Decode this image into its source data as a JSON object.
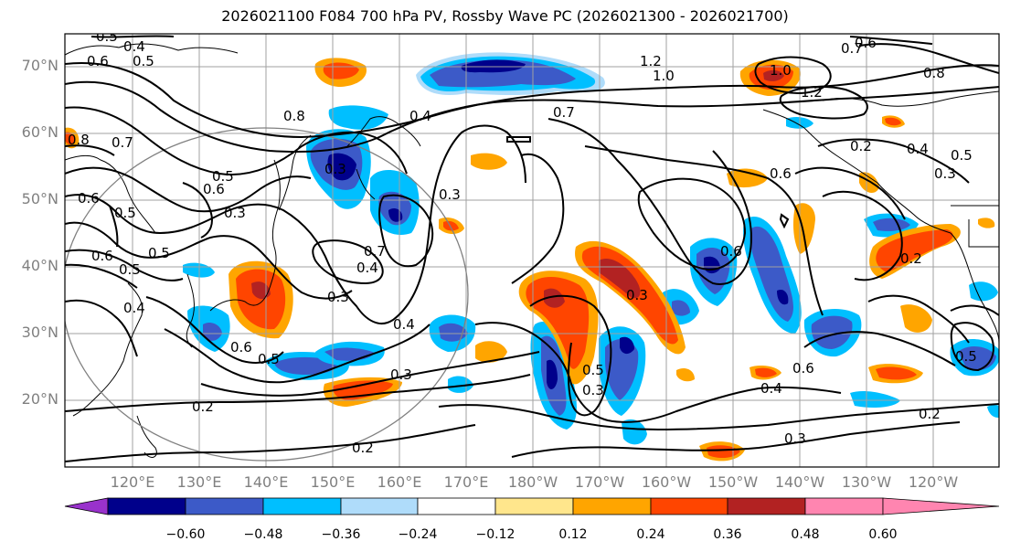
{
  "title": "2026021100 F084 700 hPa PV, Rossby Wave PC (2026021300 - 2026021700)",
  "lat_labels": [
    "70°N",
    "60°N",
    "50°N",
    "40°N",
    "30°N",
    "20°N"
  ],
  "lon_labels": [
    "120°E",
    "130°E",
    "140°E",
    "150°E",
    "160°E",
    "170°E",
    "180°W",
    "170°W",
    "160°W",
    "150°W",
    "140°W",
    "130°W",
    "120°W"
  ],
  "colorbar": {
    "ticks": [
      "−0.60",
      "−0.48",
      "−0.36",
      "−0.24",
      "−0.12",
      "0.12",
      "0.24",
      "0.36",
      "0.48",
      "0.60"
    ],
    "colors": [
      "#9932cc",
      "#00008b",
      "#3c5ac8",
      "#00bfff",
      "#afdcfa",
      "#ffffff",
      "#ffe68c",
      "#ffa500",
      "#ff4500",
      "#b22222",
      "#ff85b0"
    ]
  },
  "contour_labels": [
    "0.5",
    "0.4",
    "0.6",
    "0.5",
    "0.7",
    "0.8",
    "0.6",
    "0.5",
    "0.8",
    "0.6",
    "0.5",
    "0.3",
    "0.4",
    "0.3",
    "0.7",
    "0.5",
    "0.6",
    "0.4",
    "0.6",
    "0.5",
    "0.4",
    "0.5",
    "0.3",
    "0.2",
    "0.3",
    "0.2",
    "0.3",
    "1.2",
    "1.0",
    "0.7",
    "0.5",
    "0.3",
    "0.2",
    "1.0",
    "1.2",
    "0.6",
    "0.6",
    "0.8",
    "0.7",
    "0.6",
    "0.4",
    "0.3",
    "0.2",
    "0.4",
    "0.6",
    "0.5",
    "0.3",
    "0.4",
    "0.3",
    "0.2",
    "0.5"
  ]
}
